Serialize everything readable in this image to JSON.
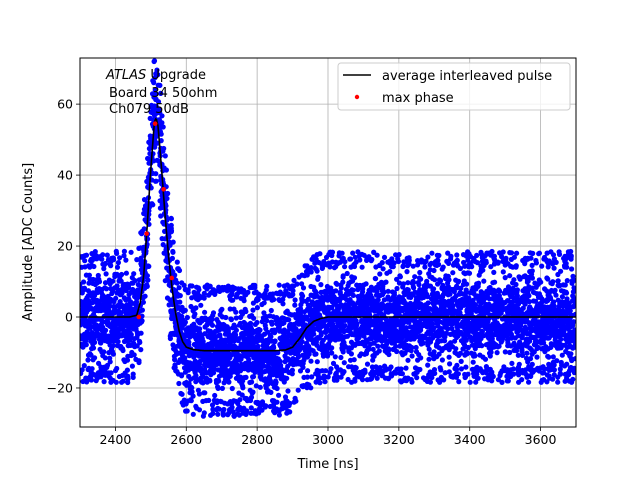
{
  "chart_data": {
    "type": "scatter",
    "xlabel": "Time [ns]",
    "ylabel": "Amplitude [ADC Counts]",
    "xlim": [
      2300,
      3700
    ],
    "ylim": [
      -31,
      73
    ],
    "xticks": [
      2400,
      2600,
      2800,
      3000,
      3200,
      3400,
      3600
    ],
    "yticks": [
      -20,
      0,
      20,
      40,
      60
    ],
    "grid": true,
    "legend_position": "top-right",
    "annotation": {
      "line1_italic": "ATLAS",
      "line1_rest": " Upgrade",
      "line2": "Board 34 50ohm",
      "line3": "Ch079 50dB"
    },
    "colors": {
      "samples": "#0000ff",
      "average": "#000000",
      "max_phase": "#ff0000",
      "grid": "#b0b0b0"
    },
    "series": [
      {
        "name": "average interleaved pulse",
        "style": "line",
        "x": [
          2300,
          2440,
          2460,
          2470,
          2480,
          2490,
          2500,
          2510,
          2515,
          2520,
          2530,
          2540,
          2550,
          2560,
          2570,
          2580,
          2590,
          2600,
          2620,
          2650,
          2700,
          2800,
          2850,
          2880,
          2900,
          2920,
          2940,
          2960,
          2980,
          3000,
          3100,
          3300,
          3500,
          3700
        ],
        "y": [
          0,
          0,
          0.5,
          4,
          12,
          26,
          42,
          55,
          56,
          54,
          42,
          29,
          17,
          8,
          1,
          -4,
          -7,
          -8.5,
          -9.2,
          -9.5,
          -9.5,
          -9.5,
          -9.5,
          -9.3,
          -8.5,
          -6,
          -3,
          -1.2,
          -0.4,
          0,
          0,
          0,
          0,
          0
        ]
      },
      {
        "name": "max phase",
        "style": "markers",
        "x": [
          2466,
          2488,
          2512,
          2536,
          2559
        ],
        "y": [
          0,
          23.5,
          54.5,
          36,
          11
        ]
      }
    ],
    "samples_band": {
      "description": "blue scatter band of individual samples",
      "half_width_baseline": 14,
      "half_width_pulse": 13
    }
  }
}
